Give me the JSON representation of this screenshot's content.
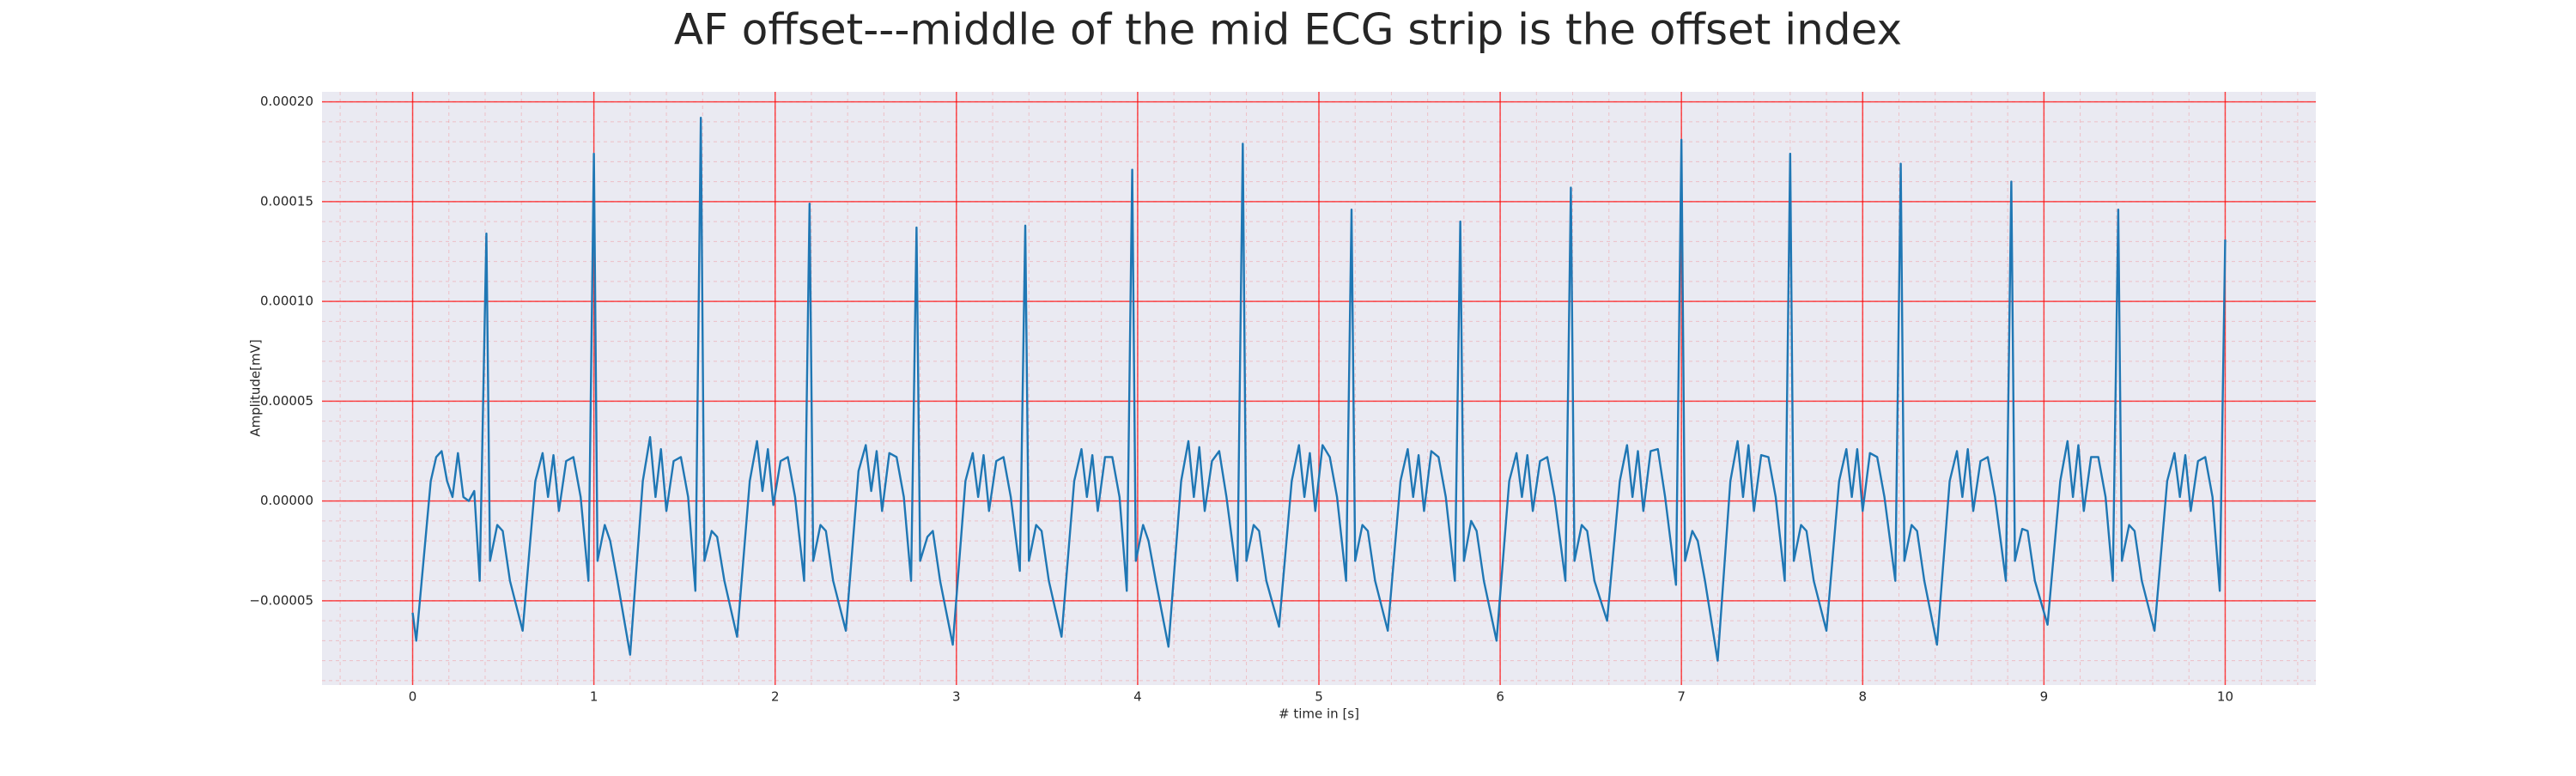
{
  "chart_data": {
    "type": "line",
    "title": "AF offset---middle of the mid ECG strip is the offset index",
    "xlabel": "# time in [s]",
    "ylabel": "Amplitude[mV]",
    "color": "#1f77b4",
    "grid": true,
    "grid_color": "#ff0000",
    "xlim": [
      -0.5,
      10.5
    ],
    "ylim": [
      -9.22e-05,
      0.000205
    ],
    "xticks": [
      0,
      1,
      2,
      3,
      4,
      5,
      6,
      7,
      8,
      9,
      10
    ],
    "yticks": [
      {
        "value": -5e-05,
        "label": "−0.00005"
      },
      {
        "value": 0,
        "label": "0.00000"
      },
      {
        "value": 5e-05,
        "label": "0.00005"
      },
      {
        "value": 0.0001,
        "label": "0.00010"
      },
      {
        "value": 0.00015,
        "label": "0.00015"
      },
      {
        "value": 0.0002,
        "label": "0.00020"
      }
    ],
    "x": [
      0,
      0.02,
      0.06,
      0.1,
      0.13,
      0.16,
      0.19,
      0.22,
      0.25,
      0.28,
      0.31,
      0.34,
      0.37,
      0.407,
      0.427,
      0.467,
      0.497,
      0.537,
      0.607,
      0.677,
      0.717,
      0.747,
      0.777,
      0.807,
      0.847,
      0.887,
      0.927,
      0.97,
      1.0,
      1.02,
      1.06,
      1.09,
      1.13,
      1.2,
      1.27,
      1.31,
      1.34,
      1.37,
      1.4,
      1.44,
      1.48,
      1.52,
      1.56,
      1.59,
      1.61,
      1.65,
      1.68,
      1.72,
      1.79,
      1.86,
      1.9,
      1.93,
      1.96,
      1.99,
      2.03,
      2.07,
      2.11,
      2.16,
      2.19,
      2.21,
      2.25,
      2.28,
      2.32,
      2.39,
      2.46,
      2.5,
      2.53,
      2.56,
      2.59,
      2.63,
      2.67,
      2.71,
      2.75,
      2.78,
      2.8,
      2.84,
      2.87,
      2.91,
      2.98,
      3.05,
      3.09,
      3.12,
      3.15,
      3.18,
      3.22,
      3.26,
      3.3,
      3.35,
      3.38,
      3.4,
      3.44,
      3.47,
      3.51,
      3.58,
      3.65,
      3.69,
      3.72,
      3.75,
      3.78,
      3.82,
      3.86,
      3.9,
      3.94,
      3.97,
      3.99,
      4.03,
      4.06,
      4.1,
      4.17,
      4.24,
      4.28,
      4.31,
      4.34,
      4.37,
      4.41,
      4.45,
      4.49,
      4.55,
      4.58,
      4.6,
      4.64,
      4.67,
      4.71,
      4.78,
      4.85,
      4.89,
      4.92,
      4.95,
      4.98,
      5.02,
      5.06,
      5.1,
      5.15,
      5.18,
      5.2,
      5.24,
      5.27,
      5.31,
      5.38,
      5.45,
      5.49,
      5.52,
      5.55,
      5.58,
      5.62,
      5.66,
      5.7,
      5.75,
      5.78,
      5.8,
      5.84,
      5.87,
      5.91,
      5.98,
      6.05,
      6.09,
      6.12,
      6.15,
      6.18,
      6.22,
      6.26,
      6.3,
      6.36,
      6.39,
      6.41,
      6.45,
      6.48,
      6.52,
      6.59,
      6.66,
      6.7,
      6.73,
      6.76,
      6.79,
      6.83,
      6.87,
      6.91,
      6.97,
      7.0,
      7.02,
      7.06,
      7.09,
      7.13,
      7.2,
      7.27,
      7.31,
      7.34,
      7.37,
      7.4,
      7.44,
      7.48,
      7.52,
      7.57,
      7.6,
      7.62,
      7.66,
      7.69,
      7.73,
      7.8,
      7.87,
      7.91,
      7.94,
      7.97,
      8.0,
      8.04,
      8.08,
      8.12,
      8.18,
      8.21,
      8.23,
      8.27,
      8.3,
      8.34,
      8.41,
      8.48,
      8.52,
      8.55,
      8.58,
      8.61,
      8.65,
      8.69,
      8.73,
      8.79,
      8.82,
      8.84,
      8.88,
      8.91,
      8.95,
      9.02,
      9.09,
      9.13,
      9.16,
      9.19,
      9.22,
      9.26,
      9.3,
      9.34,
      9.38,
      9.41,
      9.43,
      9.47,
      9.5,
      9.54,
      9.61,
      9.68,
      9.72,
      9.75,
      9.78,
      9.81,
      9.85,
      9.89,
      9.93,
      9.97,
      10.0
    ],
    "values": [
      -5.6e-05,
      -7e-05,
      -3e-05,
      1e-05,
      2.2e-05,
      2.5e-05,
      1e-05,
      2e-06,
      2.4e-05,
      2e-06,
      0,
      5e-06,
      -4e-05,
      0.000134,
      -3e-05,
      -1.2e-05,
      -1.5e-05,
      -4e-05,
      -6.5e-05,
      1e-05,
      2.4e-05,
      2e-06,
      2.3e-05,
      -5e-06,
      2e-05,
      2.2e-05,
      2e-06,
      -4e-05,
      0.000174,
      -3e-05,
      -1.2e-05,
      -2e-05,
      -4e-05,
      -7.7e-05,
      1e-05,
      3.2e-05,
      2e-06,
      2.6e-05,
      -5e-06,
      2e-05,
      2.2e-05,
      2e-06,
      -4.5e-05,
      0.000192,
      -3e-05,
      -1.5e-05,
      -1.8e-05,
      -4e-05,
      -6.8e-05,
      1e-05,
      3e-05,
      5e-06,
      2.6e-05,
      -2e-06,
      2e-05,
      2.2e-05,
      2e-06,
      -4e-05,
      0.000149,
      -3e-05,
      -1.2e-05,
      -1.5e-05,
      -4e-05,
      -6.5e-05,
      1.5e-05,
      2.8e-05,
      5e-06,
      2.5e-05,
      -5e-06,
      2.4e-05,
      2.2e-05,
      2e-06,
      -4e-05,
      0.000137,
      -3e-05,
      -1.8e-05,
      -1.5e-05,
      -4e-05,
      -7.2e-05,
      1e-05,
      2.4e-05,
      2e-06,
      2.3e-05,
      -5e-06,
      2e-05,
      2.2e-05,
      2e-06,
      -3.5e-05,
      0.000138,
      -3e-05,
      -1.2e-05,
      -1.5e-05,
      -4e-05,
      -6.8e-05,
      1e-05,
      2.6e-05,
      2e-06,
      2.3e-05,
      -5e-06,
      2.2e-05,
      2.2e-05,
      2e-06,
      -4.5e-05,
      0.000166,
      -3e-05,
      -1.2e-05,
      -2e-05,
      -4e-05,
      -7.3e-05,
      1e-05,
      3e-05,
      2e-06,
      2.7e-05,
      -5e-06,
      2e-05,
      2.5e-05,
      2e-06,
      -4e-05,
      0.000179,
      -3e-05,
      -1.2e-05,
      -1.5e-05,
      -4e-05,
      -6.3e-05,
      1e-05,
      2.8e-05,
      2e-06,
      2.4e-05,
      -5e-06,
      2.8e-05,
      2.2e-05,
      2e-06,
      -4e-05,
      0.000146,
      -3e-05,
      -1.2e-05,
      -1.5e-05,
      -4e-05,
      -6.5e-05,
      1e-05,
      2.6e-05,
      2e-06,
      2.3e-05,
      -5e-06,
      2.5e-05,
      2.2e-05,
      2e-06,
      -4e-05,
      0.00014,
      -3e-05,
      -1e-05,
      -1.5e-05,
      -4e-05,
      -7e-05,
      1e-05,
      2.4e-05,
      2e-06,
      2.3e-05,
      -5e-06,
      2e-05,
      2.2e-05,
      2e-06,
      -4e-05,
      0.000157,
      -3e-05,
      -1.2e-05,
      -1.5e-05,
      -4e-05,
      -6e-05,
      1e-05,
      2.8e-05,
      2e-06,
      2.5e-05,
      -5e-06,
      2.5e-05,
      2.6e-05,
      2e-06,
      -4.2e-05,
      0.000181,
      -3e-05,
      -1.5e-05,
      -2e-05,
      -4e-05,
      -8e-05,
      1e-05,
      3e-05,
      2e-06,
      2.8e-05,
      -5e-06,
      2.3e-05,
      2.2e-05,
      2e-06,
      -4e-05,
      0.000174,
      -3e-05,
      -1.2e-05,
      -1.5e-05,
      -4e-05,
      -6.5e-05,
      1e-05,
      2.6e-05,
      2e-06,
      2.6e-05,
      -5e-06,
      2.4e-05,
      2.2e-05,
      2e-06,
      -4e-05,
      0.000169,
      -3e-05,
      -1.2e-05,
      -1.5e-05,
      -4e-05,
      -7.2e-05,
      1e-05,
      2.5e-05,
      2e-06,
      2.6e-05,
      -5e-06,
      2e-05,
      2.2e-05,
      2e-06,
      -4e-05,
      0.00016,
      -3e-05,
      -1.4e-05,
      -1.5e-05,
      -4e-05,
      -6.2e-05,
      1e-05,
      3e-05,
      2e-06,
      2.8e-05,
      -5e-06,
      2.2e-05,
      2.2e-05,
      2e-06,
      -4e-05,
      0.000146,
      -3e-05,
      -1.2e-05,
      -1.5e-05,
      -4e-05,
      -6.5e-05,
      1e-05,
      2.4e-05,
      2e-06,
      2.3e-05,
      -5e-06,
      2e-05,
      2.2e-05,
      2e-06,
      -4.5e-05,
      0.000131
    ]
  }
}
